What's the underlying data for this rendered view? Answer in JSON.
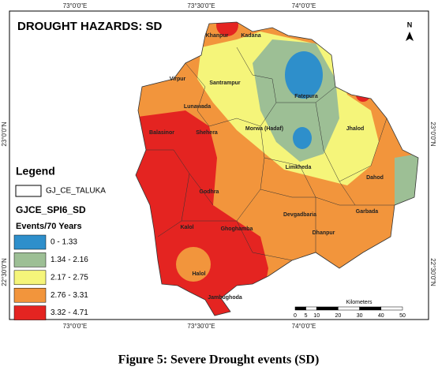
{
  "map": {
    "title": "DROUGHT HAZARDS: SD",
    "longitude_labels": [
      "73°0'0\"E",
      "73°30'0\"E",
      "74°0'0\"E"
    ],
    "latitude_labels": [
      "23°0'0\"N",
      "22°30'0\"N"
    ],
    "north": "N",
    "talukas": [
      "Khanpur",
      "Kadana",
      "Virpur",
      "Santrampur",
      "Fatepura",
      "Lunawada",
      "Balasinor",
      "Jhalod",
      "Shehera",
      "Morwa (Hadaf)",
      "Limkheda",
      "Dahod",
      "Godhra",
      "Devgadbaria",
      "Garbada",
      "Kalol",
      "Dhanpur",
      "Ghoghamba",
      "Halol",
      "Jambughoda"
    ],
    "legend": {
      "title": "Legend",
      "boundary": "GJ_CE_TALUKA",
      "layer": "GJCE_SPI6_SD",
      "unit": "Events/70 Years",
      "classes": [
        {
          "label": "0 - 1.33",
          "color": "#2e8fcb"
        },
        {
          "label": "1.34 - 2.16",
          "color": "#9dbf95"
        },
        {
          "label": "2.17 - 2.75",
          "color": "#f5f57a"
        },
        {
          "label": "2.76 - 3.31",
          "color": "#f2953c"
        },
        {
          "label": "3.32 - 4.71",
          "color": "#e42421"
        }
      ]
    },
    "scale": {
      "label": "Kilometers",
      "ticks": [
        0,
        5,
        10,
        20,
        30,
        40,
        50
      ]
    }
  },
  "caption": "Figure 5: Severe Drought events (SD)"
}
